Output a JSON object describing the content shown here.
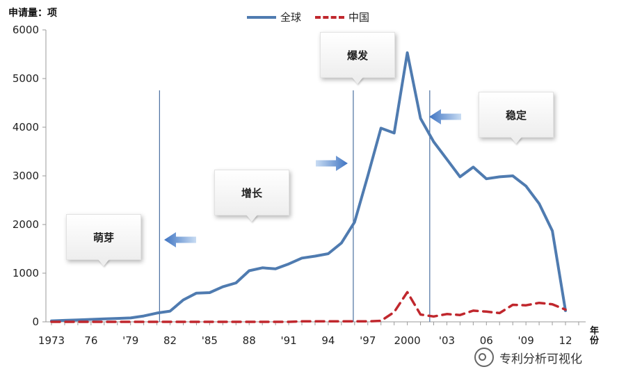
{
  "chart_data": {
    "type": "line",
    "ylabel": "申请量：项",
    "xunit": "年份",
    "ylim": [
      0,
      6000
    ],
    "yticks": [
      0,
      1000,
      2000,
      3000,
      4000,
      5000,
      6000
    ],
    "xlim": [
      1973,
      2013
    ],
    "xticks": [
      {
        "x": 1973,
        "label": "1973"
      },
      {
        "x": 1976,
        "label": "76"
      },
      {
        "x": 1979,
        "label": "'79"
      },
      {
        "x": 1982,
        "label": "82"
      },
      {
        "x": 1985,
        "label": "'85"
      },
      {
        "x": 1988,
        "label": "88"
      },
      {
        "x": 1991,
        "label": "'91"
      },
      {
        "x": 1994,
        "label": "94"
      },
      {
        "x": 1997,
        "label": "'97"
      },
      {
        "x": 2000,
        "label": "2000"
      },
      {
        "x": 2003,
        "label": "'03"
      },
      {
        "x": 2006,
        "label": "06"
      },
      {
        "x": 2009,
        "label": "'09"
      },
      {
        "x": 2012,
        "label": "12"
      }
    ],
    "series": [
      {
        "name": "全球",
        "color": "#4f7bb0",
        "style": "solid",
        "x": [
          1973,
          1974,
          1975,
          1976,
          1977,
          1978,
          1979,
          1980,
          1981,
          1982,
          1983,
          1984,
          1985,
          1986,
          1987,
          1988,
          1989,
          1990,
          1991,
          1992,
          1993,
          1994,
          1995,
          1996,
          1997,
          1998,
          1999,
          2000,
          2001,
          2002,
          2003,
          2004,
          2005,
          2006,
          2007,
          2008,
          2009,
          2010,
          2011,
          2012
        ],
        "values": [
          20,
          30,
          40,
          50,
          60,
          70,
          80,
          120,
          180,
          220,
          450,
          590,
          600,
          720,
          800,
          1050,
          1110,
          1090,
          1190,
          1310,
          1350,
          1400,
          1620,
          2050,
          3000,
          3980,
          3880,
          5530,
          4180,
          3700,
          3340,
          2980,
          3180,
          2940,
          2980,
          3000,
          2790,
          2430,
          1870,
          230
        ]
      },
      {
        "name": "中国",
        "color": "#c0272d",
        "style": "dashed",
        "x": [
          1973,
          1974,
          1975,
          1976,
          1977,
          1978,
          1979,
          1980,
          1981,
          1982,
          1983,
          1984,
          1985,
          1986,
          1987,
          1988,
          1989,
          1990,
          1991,
          1992,
          1993,
          1994,
          1995,
          1996,
          1997,
          1998,
          1999,
          2000,
          2001,
          2002,
          2003,
          2004,
          2005,
          2006,
          2007,
          2008,
          2009,
          2010,
          2011,
          2012
        ],
        "values": [
          0,
          0,
          0,
          0,
          0,
          0,
          0,
          0,
          0,
          0,
          0,
          0,
          0,
          0,
          0,
          0,
          0,
          0,
          0,
          10,
          10,
          10,
          10,
          10,
          10,
          20,
          200,
          610,
          150,
          110,
          160,
          140,
          230,
          210,
          180,
          350,
          340,
          390,
          360,
          250
        ]
      }
    ],
    "phase_lines": [
      1981.2,
      1995.9,
      2001.7
    ],
    "callouts": [
      {
        "label": "萌芽",
        "arrow_dir": "left"
      },
      {
        "label": "增长"
      },
      {
        "label": "爆发",
        "arrow_dir": "right"
      },
      {
        "label": "稳定",
        "arrow_dir": "left"
      }
    ]
  },
  "watermark": "专利分析可视化"
}
